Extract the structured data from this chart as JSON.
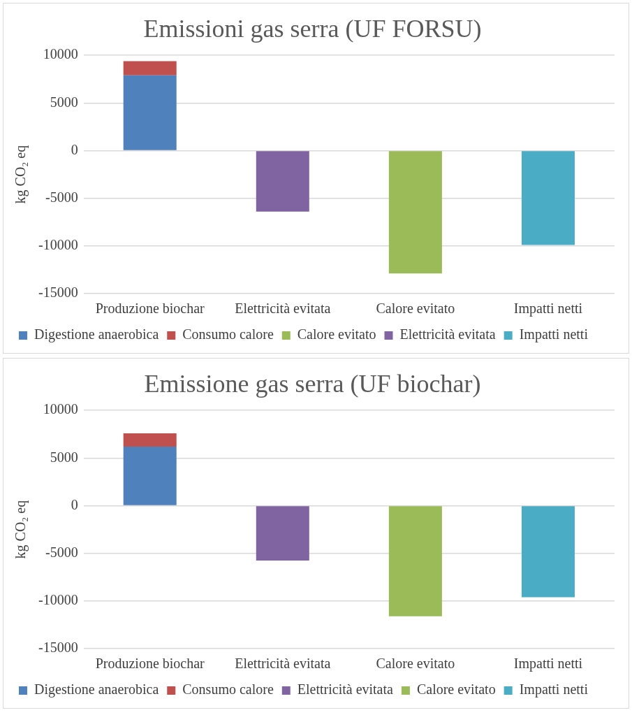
{
  "chart_data": [
    {
      "type": "bar",
      "title": "Emissioni gas serra (UF FORSU)",
      "ylabel": "kg CO₂ eq",
      "categories": [
        "Produzione biochar",
        "Elettricità evitata",
        "Calore evitato",
        "Impatti netti"
      ],
      "stacked": true,
      "series": [
        {
          "name": "Digestione anaerobica",
          "color": "#4f81bd",
          "values": [
            7900,
            null,
            null,
            null
          ]
        },
        {
          "name": "Consumo calore",
          "color": "#c0504d",
          "values": [
            1500,
            null,
            null,
            null
          ]
        },
        {
          "name": "Calore evitato",
          "color": "#9bbb59",
          "values": [
            null,
            null,
            -12900,
            null
          ]
        },
        {
          "name": "Elettricità evitata",
          "color": "#8064a2",
          "values": [
            null,
            -6400,
            null,
            null
          ]
        },
        {
          "name": "Impatti netti",
          "color": "#4bacc6",
          "values": [
            null,
            null,
            null,
            -9900
          ]
        }
      ],
      "ylim": [
        -15000,
        10000
      ],
      "yticks": [
        -15000,
        -10000,
        -5000,
        0,
        5000,
        10000
      ],
      "grid": "y",
      "legend": "bottom"
    },
    {
      "type": "bar",
      "title": "Emissione gas serra (UF biochar)",
      "ylabel": "kg CO₂ eq",
      "categories": [
        "Produzione biochar",
        "Elettricità evitata",
        "Calore evitato",
        "Impatti netti"
      ],
      "stacked": true,
      "series": [
        {
          "name": "Digestione anaerobica",
          "color": "#4f81bd",
          "values": [
            6200,
            null,
            null,
            null
          ]
        },
        {
          "name": "Consumo calore",
          "color": "#c0504d",
          "values": [
            1400,
            null,
            null,
            null
          ]
        },
        {
          "name": "Elettricità evitata",
          "color": "#8064a2",
          "values": [
            null,
            -5750,
            null,
            null
          ]
        },
        {
          "name": "Calore evitato",
          "color": "#9bbb59",
          "values": [
            null,
            null,
            -11600,
            null
          ]
        },
        {
          "name": "Impatti netti",
          "color": "#4bacc6",
          "values": [
            null,
            null,
            null,
            -9600
          ]
        }
      ],
      "ylim": [
        -15000,
        10000
      ],
      "yticks": [
        -15000,
        -10000,
        -5000,
        0,
        5000,
        10000
      ],
      "grid": "y",
      "legend": "bottom"
    }
  ]
}
